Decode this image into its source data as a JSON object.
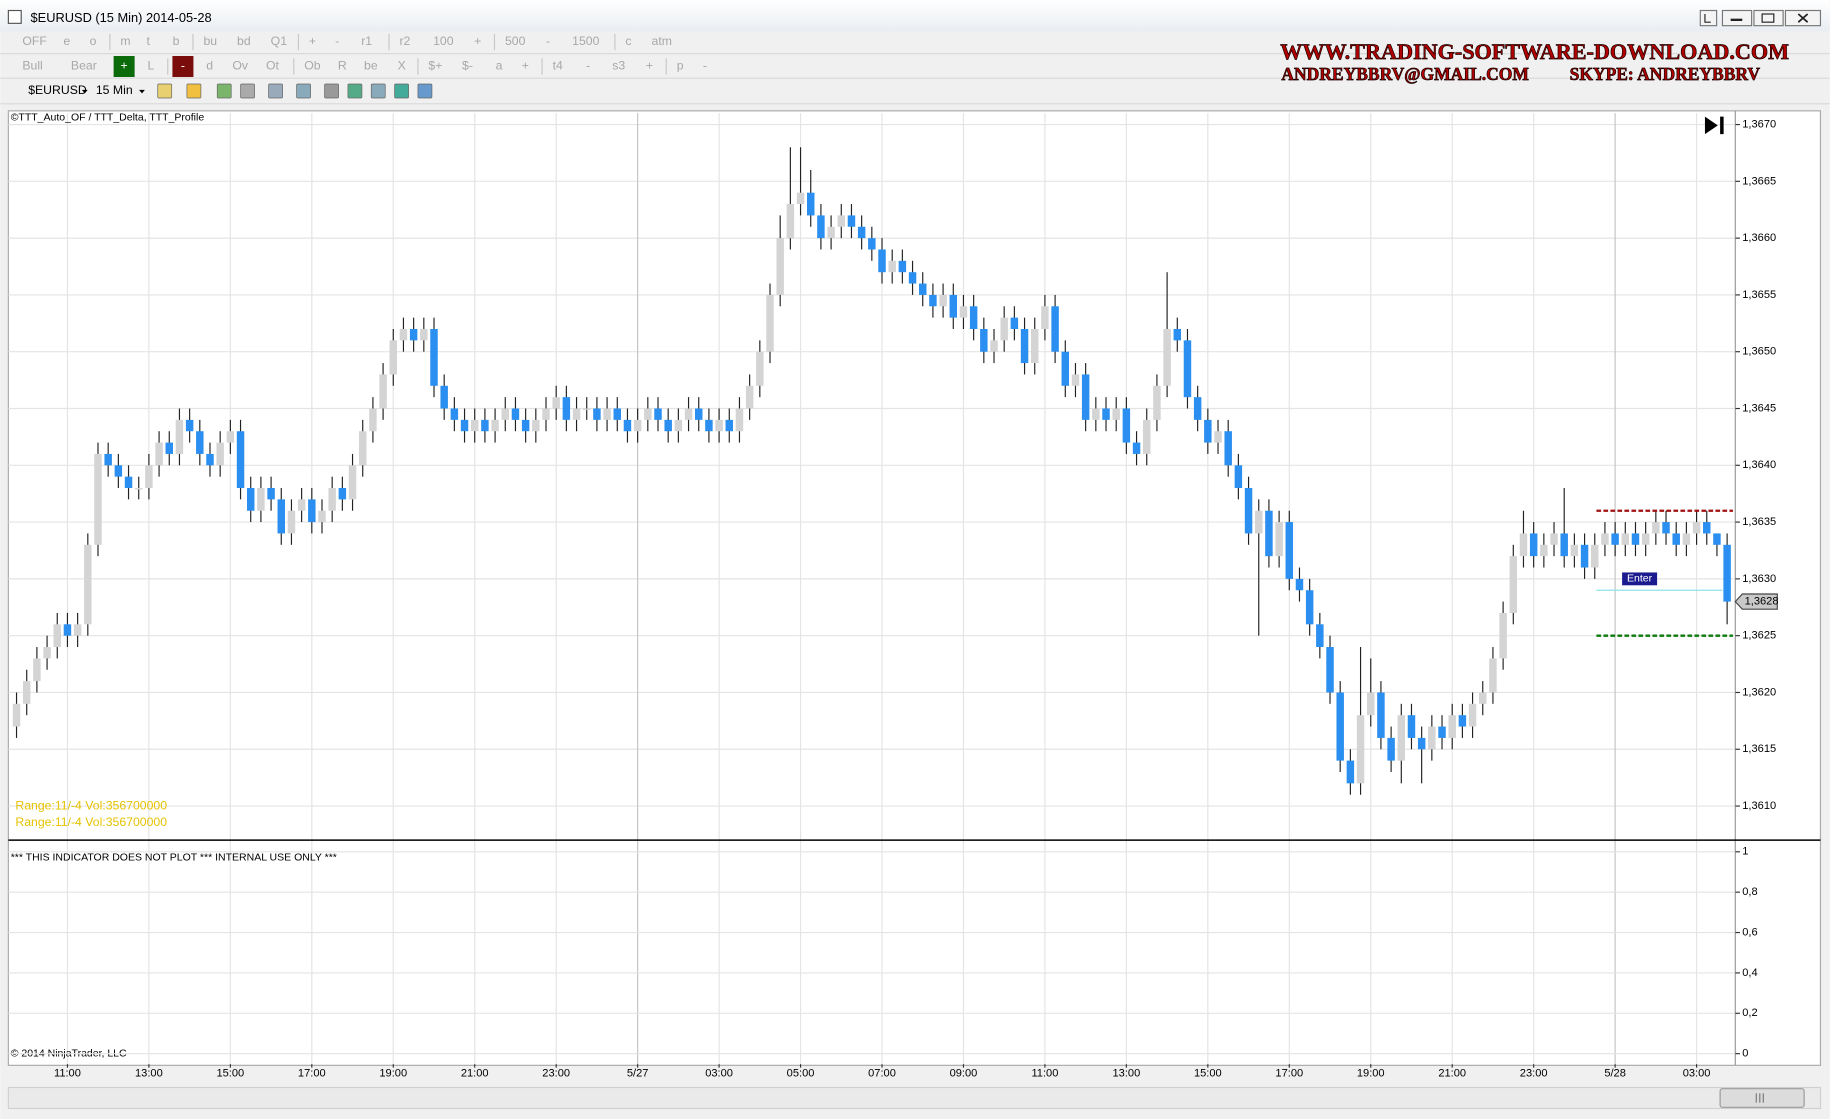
{
  "window": {
    "title": "$EURUSD (15 Min)  2014-05-28"
  },
  "toolbar": {
    "row1": [
      "OFF",
      "e",
      "o",
      "m",
      "t",
      "b",
      "bu",
      "bd",
      "Q1",
      "+",
      "-",
      "r1",
      "r2",
      "100",
      "+",
      "500",
      "-",
      "1500",
      "c",
      "atm"
    ],
    "row2": [
      "Bull",
      "Bear",
      {
        "text": "+",
        "color": "#0b6b0b"
      },
      "L",
      {
        "text": "-",
        "color": "#7a0c0c"
      },
      "d",
      "Ov",
      "Ot",
      "Ob",
      "R",
      "be",
      "X",
      "$+",
      "$-",
      "a",
      "+",
      "t4",
      "-",
      "s3",
      "+",
      "p",
      "-"
    ],
    "instrument": "$EURUSD",
    "interval": "15 Min"
  },
  "watermark": {
    "site": "WWW.TRADING-SOFTWARE-DOWNLOAD.COM",
    "email": "ANDREYBBRV@GMAIL.COM",
    "skype": "SKYPE: ANDREYBBRV"
  },
  "chart_data": {
    "type": "candlestick",
    "indicator_label": "©TTT_Auto_OF / TTT_Delta, TTT_Profile",
    "range_labels": [
      "Range:11/-4 Vol:356700000",
      "Range:11/-4 Vol:356700000"
    ],
    "copyright": "© 2014 NinjaTrader, LLC",
    "up_color": "#d4d4d4",
    "down_color": "#2a8ff0",
    "grid": true,
    "ylim": [
      1.3607,
      1.3671
    ],
    "yticks": [
      {
        "value": 1.361,
        "label": "1,3610"
      },
      {
        "value": 1.3615,
        "label": "1,3615"
      },
      {
        "value": 1.362,
        "label": "1,3620"
      },
      {
        "value": 1.3625,
        "label": "1,3625"
      },
      {
        "value": 1.363,
        "label": "1,3630"
      },
      {
        "value": 1.3635,
        "label": "1,3635"
      },
      {
        "value": 1.364,
        "label": "1,3640"
      },
      {
        "value": 1.3645,
        "label": "1,3645"
      },
      {
        "value": 1.365,
        "label": "1,3650"
      },
      {
        "value": 1.3655,
        "label": "1,3655"
      },
      {
        "value": 1.366,
        "label": "1,3660"
      },
      {
        "value": 1.3665,
        "label": "1,3665"
      },
      {
        "value": 1.367,
        "label": "1,3670"
      }
    ],
    "categories": [
      null,
      null,
      null,
      null,
      null,
      "11:00",
      null,
      null,
      null,
      null,
      null,
      null,
      null,
      "13:00",
      null,
      null,
      null,
      null,
      null,
      null,
      null,
      "15:00",
      null,
      null,
      null,
      null,
      null,
      null,
      null,
      "17:00",
      null,
      null,
      null,
      null,
      null,
      null,
      null,
      "19:00",
      null,
      null,
      null,
      null,
      null,
      null,
      null,
      "21:00",
      null,
      null,
      null,
      null,
      null,
      null,
      null,
      "23:00",
      null,
      null,
      null,
      null,
      null,
      null,
      null,
      "5/27",
      null,
      null,
      null,
      null,
      null,
      null,
      null,
      "03:00",
      null,
      null,
      null,
      null,
      null,
      null,
      null,
      "05:00",
      null,
      null,
      null,
      null,
      null,
      null,
      null,
      "07:00",
      null,
      null,
      null,
      null,
      null,
      null,
      null,
      "09:00",
      null,
      null,
      null,
      null,
      null,
      null,
      null,
      "11:00",
      null,
      null,
      null,
      null,
      null,
      null,
      null,
      "13:00",
      null,
      null,
      null,
      null,
      null,
      null,
      null,
      "15:00",
      null,
      null,
      null,
      null,
      null,
      null,
      null,
      "17:00",
      null,
      null,
      null,
      null,
      null,
      null,
      null,
      "19:00",
      null,
      null,
      null,
      null,
      null,
      null,
      null,
      "21:00",
      null,
      null,
      null,
      null,
      null,
      null,
      null,
      "23:00",
      null,
      null,
      null,
      null,
      null,
      null,
      null,
      "5/28",
      null,
      null,
      null,
      null,
      null,
      null,
      null,
      "03:00",
      null,
      null,
      null
    ],
    "open": [
      1.3617,
      1.3619,
      1.3621,
      1.3623,
      1.3624,
      1.3626,
      1.3625,
      1.3626,
      1.3633,
      1.3641,
      1.364,
      1.3639,
      1.3638,
      1.3638,
      1.364,
      1.3642,
      1.3641,
      1.3644,
      1.3643,
      1.3641,
      1.364,
      1.3642,
      1.3643,
      1.3638,
      1.3636,
      1.3638,
      1.3637,
      1.3634,
      1.3636,
      1.3637,
      1.3635,
      1.3636,
      1.3638,
      1.3637,
      1.364,
      1.3643,
      1.3645,
      1.3648,
      1.3651,
      1.3652,
      1.3651,
      1.3652,
      1.3647,
      1.3645,
      1.3644,
      1.3643,
      1.3644,
      1.3643,
      1.3644,
      1.3645,
      1.3644,
      1.3643,
      1.3644,
      1.3645,
      1.3646,
      1.3644,
      1.3645,
      1.3645,
      1.3644,
      1.3645,
      1.3644,
      1.3643,
      1.3644,
      1.3645,
      1.3644,
      1.3643,
      1.3644,
      1.3645,
      1.3644,
      1.3643,
      1.3644,
      1.3643,
      1.3645,
      1.3647,
      1.365,
      1.3655,
      1.366,
      1.3663,
      1.3664,
      1.3662,
      1.366,
      1.3661,
      1.3662,
      1.3661,
      1.366,
      1.3659,
      1.3657,
      1.3658,
      1.3657,
      1.3656,
      1.3655,
      1.3654,
      1.3655,
      1.3653,
      1.3654,
      1.3652,
      1.365,
      1.3651,
      1.3653,
      1.3652,
      1.3649,
      1.3652,
      1.3654,
      1.365,
      1.3647,
      1.3648,
      1.3644,
      1.3645,
      1.3644,
      1.3645,
      1.3642,
      1.3641,
      1.3644,
      1.3647,
      1.3652,
      1.3651,
      1.3646,
      1.3644,
      1.3642,
      1.3643,
      1.364,
      1.3638,
      1.3634,
      1.3636,
      1.3632,
      1.3635,
      1.363,
      1.3629,
      1.3626,
      1.3624,
      1.362,
      1.3614,
      1.3612,
      1.3618,
      1.362,
      1.3616,
      1.3614,
      1.3618,
      1.3616,
      1.3615,
      1.3617,
      1.3616,
      1.3618,
      1.3617,
      1.3619,
      1.362,
      1.3623,
      1.3627,
      1.3632,
      1.3634,
      1.3632,
      1.3633,
      1.3634,
      1.3632,
      1.3633,
      1.3631,
      1.3633,
      1.3634,
      1.3633,
      1.3634,
      1.3633,
      1.3634,
      1.3635,
      1.3634,
      1.3633,
      1.3634,
      1.3635,
      1.3634,
      1.3633
    ],
    "high": [
      1.362,
      1.3622,
      1.3624,
      1.3625,
      1.3627,
      1.3627,
      1.3627,
      1.3634,
      1.3642,
      1.3642,
      1.3641,
      1.364,
      1.3639,
      1.3641,
      1.3643,
      1.3643,
      1.3645,
      1.3645,
      1.3644,
      1.3642,
      1.3643,
      1.3644,
      1.3644,
      1.3639,
      1.3639,
      1.3639,
      1.3638,
      1.3637,
      1.3638,
      1.3638,
      1.3637,
      1.3639,
      1.3639,
      1.3641,
      1.3644,
      1.3646,
      1.3649,
      1.3652,
      1.3653,
      1.3653,
      1.3653,
      1.3653,
      1.3648,
      1.3646,
      1.3645,
      1.3645,
      1.3645,
      1.3645,
      1.3646,
      1.3646,
      1.3645,
      1.3645,
      1.3646,
      1.3647,
      1.3647,
      1.3646,
      1.3646,
      1.3646,
      1.3646,
      1.3646,
      1.3645,
      1.3645,
      1.3646,
      1.3646,
      1.3645,
      1.3645,
      1.3646,
      1.3646,
      1.3645,
      1.3645,
      1.3645,
      1.3646,
      1.3648,
      1.3651,
      1.3656,
      1.3662,
      1.3668,
      1.3668,
      1.3666,
      1.3663,
      1.3662,
      1.3663,
      1.3663,
      1.3662,
      1.3661,
      1.366,
      1.3659,
      1.3659,
      1.3658,
      1.3657,
      1.3656,
      1.3656,
      1.3656,
      1.3655,
      1.3655,
      1.3653,
      1.3652,
      1.3654,
      1.3654,
      1.3653,
      1.3653,
      1.3655,
      1.3655,
      1.3651,
      1.3649,
      1.3649,
      1.3646,
      1.3646,
      1.3646,
      1.3646,
      1.3643,
      1.3645,
      1.3648,
      1.3657,
      1.3653,
      1.3652,
      1.3647,
      1.3645,
      1.3644,
      1.3644,
      1.3641,
      1.3639,
      1.3637,
      1.3637,
      1.3636,
      1.3636,
      1.3631,
      1.363,
      1.3627,
      1.3625,
      1.3621,
      1.3615,
      1.3624,
      1.3623,
      1.3621,
      1.3617,
      1.3619,
      1.3619,
      1.3617,
      1.3618,
      1.3618,
      1.3619,
      1.3619,
      1.362,
      1.3621,
      1.3624,
      1.3628,
      1.3633,
      1.3636,
      1.3635,
      1.3634,
      1.3635,
      1.3638,
      1.3634,
      1.3634,
      1.3634,
      1.3635,
      1.3635,
      1.3635,
      1.3635,
      1.3635,
      1.3636,
      1.3636,
      1.3635,
      1.3635,
      1.3636,
      1.3636,
      1.3634,
      1.3634
    ],
    "low": [
      1.3616,
      1.3618,
      1.362,
      1.3622,
      1.3623,
      1.3624,
      1.3624,
      1.3625,
      1.3632,
      1.3639,
      1.3638,
      1.3637,
      1.3637,
      1.3637,
      1.3639,
      1.364,
      1.364,
      1.3642,
      1.364,
      1.3639,
      1.3639,
      1.3641,
      1.3637,
      1.3635,
      1.3635,
      1.3636,
      1.3633,
      1.3633,
      1.3635,
      1.3634,
      1.3634,
      1.3635,
      1.3636,
      1.3636,
      1.3639,
      1.3642,
      1.3644,
      1.3647,
      1.365,
      1.365,
      1.365,
      1.3646,
      1.3644,
      1.3643,
      1.3642,
      1.3642,
      1.3642,
      1.3642,
      1.3643,
      1.3643,
      1.3642,
      1.3642,
      1.3643,
      1.3644,
      1.3643,
      1.3643,
      1.3644,
      1.3643,
      1.3643,
      1.3643,
      1.3642,
      1.3642,
      1.3643,
      1.3643,
      1.3642,
      1.3642,
      1.3643,
      1.3643,
      1.3642,
      1.3642,
      1.3642,
      1.3642,
      1.3644,
      1.3646,
      1.3649,
      1.3654,
      1.3659,
      1.3662,
      1.3661,
      1.3659,
      1.3659,
      1.366,
      1.366,
      1.3659,
      1.3658,
      1.3656,
      1.3656,
      1.3656,
      1.3655,
      1.3654,
      1.3653,
      1.3653,
      1.3652,
      1.3652,
      1.3651,
      1.3649,
      1.3649,
      1.365,
      1.3651,
      1.3648,
      1.3648,
      1.3651,
      1.3649,
      1.3646,
      1.3646,
      1.3643,
      1.3643,
      1.3643,
      1.3643,
      1.3641,
      1.364,
      1.364,
      1.3643,
      1.3646,
      1.365,
      1.3645,
      1.3643,
      1.3641,
      1.3641,
      1.3639,
      1.3637,
      1.3633,
      1.3625,
      1.3631,
      1.3631,
      1.3629,
      1.3628,
      1.3625,
      1.3623,
      1.3619,
      1.3613,
      1.3611,
      1.3611,
      1.3617,
      1.3615,
      1.3613,
      1.3612,
      1.3615,
      1.3612,
      1.3614,
      1.3615,
      1.3615,
      1.3616,
      1.3616,
      1.3618,
      1.3619,
      1.3622,
      1.3626,
      1.3631,
      1.3631,
      1.3631,
      1.3632,
      1.3631,
      1.3631,
      1.363,
      1.363,
      1.3632,
      1.3632,
      1.3632,
      1.3632,
      1.3632,
      1.3633,
      1.3633,
      1.3632,
      1.3632,
      1.3633,
      1.3633,
      1.3632,
      1.3626
    ],
    "close": [
      1.3619,
      1.3621,
      1.3623,
      1.3624,
      1.3626,
      1.3625,
      1.3626,
      1.3633,
      1.3641,
      1.364,
      1.3639,
      1.3638,
      1.3638,
      1.364,
      1.3642,
      1.3641,
      1.3644,
      1.3643,
      1.3641,
      1.364,
      1.3642,
      1.3643,
      1.3638,
      1.3636,
      1.3638,
      1.3637,
      1.3634,
      1.3636,
      1.3637,
      1.3635,
      1.3636,
      1.3638,
      1.3637,
      1.364,
      1.3643,
      1.3645,
      1.3648,
      1.3651,
      1.3652,
      1.3651,
      1.3652,
      1.3647,
      1.3645,
      1.3644,
      1.3643,
      1.3644,
      1.3643,
      1.3644,
      1.3645,
      1.3644,
      1.3643,
      1.3644,
      1.3645,
      1.3646,
      1.3644,
      1.3645,
      1.3645,
      1.3644,
      1.3645,
      1.3644,
      1.3643,
      1.3644,
      1.3645,
      1.3644,
      1.3643,
      1.3644,
      1.3645,
      1.3644,
      1.3643,
      1.3644,
      1.3643,
      1.3645,
      1.3647,
      1.365,
      1.3655,
      1.366,
      1.3663,
      1.3664,
      1.3662,
      1.366,
      1.3661,
      1.3662,
      1.3661,
      1.366,
      1.3659,
      1.3657,
      1.3658,
      1.3657,
      1.3656,
      1.3655,
      1.3654,
      1.3655,
      1.3653,
      1.3654,
      1.3652,
      1.365,
      1.3651,
      1.3653,
      1.3652,
      1.3649,
      1.3652,
      1.3654,
      1.365,
      1.3647,
      1.3648,
      1.3644,
      1.3645,
      1.3644,
      1.3645,
      1.3642,
      1.3641,
      1.3644,
      1.3647,
      1.3652,
      1.3651,
      1.3646,
      1.3644,
      1.3642,
      1.3643,
      1.364,
      1.3638,
      1.3634,
      1.3636,
      1.3632,
      1.3635,
      1.363,
      1.3629,
      1.3626,
      1.3624,
      1.362,
      1.3614,
      1.3612,
      1.3618,
      1.362,
      1.3616,
      1.3614,
      1.3618,
      1.3616,
      1.3615,
      1.3617,
      1.3616,
      1.3618,
      1.3617,
      1.3619,
      1.362,
      1.3623,
      1.3627,
      1.3632,
      1.3634,
      1.3632,
      1.3633,
      1.3634,
      1.3632,
      1.3633,
      1.3631,
      1.3633,
      1.3634,
      1.3633,
      1.3634,
      1.3633,
      1.3634,
      1.3635,
      1.3634,
      1.3633,
      1.3634,
      1.3635,
      1.3634,
      1.3633,
      1.3628
    ],
    "last_price": {
      "value": 1.3628,
      "label": "1,3628"
    },
    "levels": [
      {
        "value": 1.3636,
        "color": "#a01010",
        "dashed": true
      },
      {
        "value": 1.3625,
        "color": "#0a7a0a",
        "dashed": true
      },
      {
        "value": 1.3629,
        "color": "#8fe3ec",
        "dashed": false
      }
    ],
    "entry": {
      "text": "Enter",
      "value": 1.363,
      "color": "#1b1b8f"
    },
    "lower_pane": {
      "text": "*** THIS INDICATOR DOES NOT PLOT *** INTERNAL USE ONLY ***",
      "ylim": [
        0,
        1
      ],
      "yticks": [
        0,
        {
          "value": 0.2,
          "label": "0,2"
        },
        {
          "value": 0.4,
          "label": "0,4"
        },
        {
          "value": 0.6,
          "label": "0,6"
        },
        {
          "value": 0.8,
          "label": "0,8"
        },
        1
      ]
    }
  }
}
